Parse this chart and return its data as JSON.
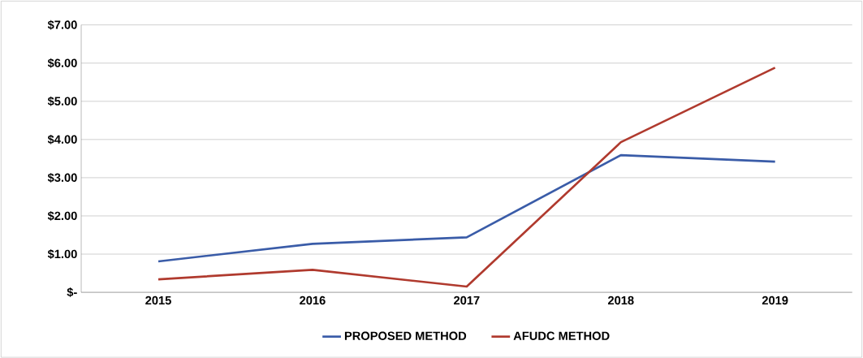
{
  "chart_data": {
    "type": "line",
    "categories": [
      "2015",
      "2016",
      "2017",
      "2018",
      "2019"
    ],
    "series": [
      {
        "name": "PROPOSED METHOD",
        "color": "#3a5ca8",
        "values": [
          0.81,
          1.27,
          1.44,
          3.59,
          3.42
        ]
      },
      {
        "name": "AFUDC METHOD",
        "color": "#b03a2e",
        "values": [
          0.34,
          0.59,
          0.15,
          3.93,
          5.88
        ]
      }
    ],
    "ylim": [
      0,
      7
    ],
    "yticks": [
      {
        "value": 0,
        "label": "$-"
      },
      {
        "value": 1,
        "label": "$1.00"
      },
      {
        "value": 2,
        "label": "$2.00"
      },
      {
        "value": 3,
        "label": "$3.00"
      },
      {
        "value": 4,
        "label": "$4.00"
      },
      {
        "value": 5,
        "label": "$5.00"
      },
      {
        "value": 6,
        "label": "$6.00"
      },
      {
        "value": 7,
        "label": "$7.00"
      }
    ],
    "grid": "y",
    "legend": "bottom"
  }
}
